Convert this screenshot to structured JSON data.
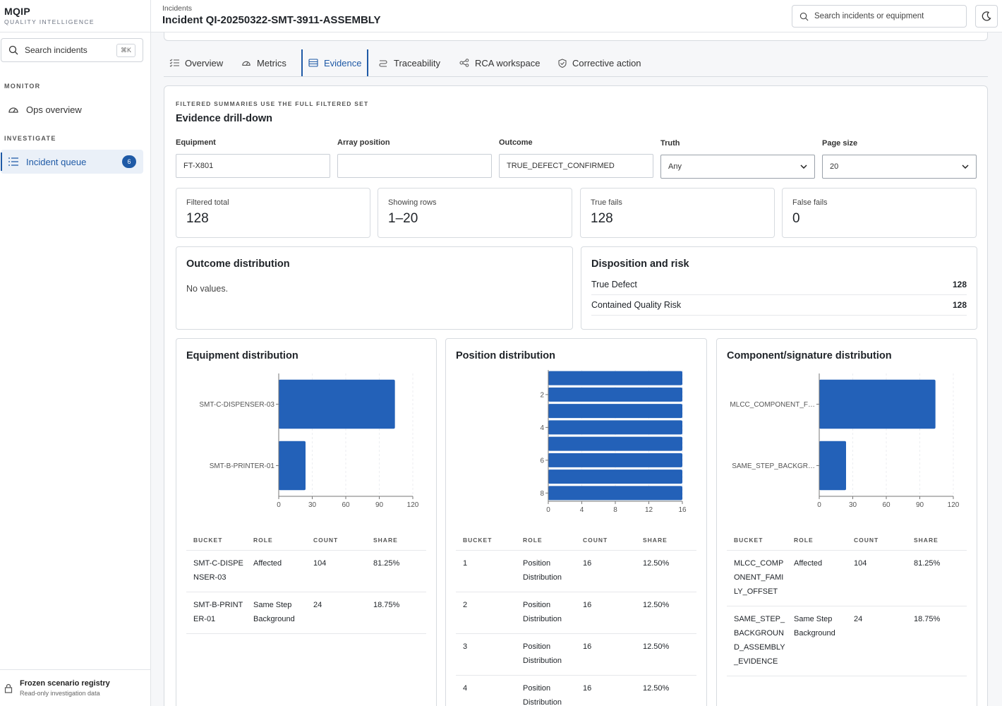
{
  "brand": {
    "name": "MQIP",
    "subtitle": "QUALITY INTELLIGENCE"
  },
  "sidebar": {
    "search_placeholder": "Search incidents",
    "search_shortcut": "⌘K",
    "sections": [
      {
        "label": "MONITOR",
        "items": [
          {
            "label": "Ops overview",
            "icon": "gauge-icon"
          }
        ]
      },
      {
        "label": "INVESTIGATE",
        "items": [
          {
            "label": "Incident queue",
            "icon": "list-icon",
            "badge": "6",
            "active": true
          }
        ]
      }
    ],
    "footer": {
      "title": "Frozen scenario registry",
      "subtitle": "Read-only investigation data"
    }
  },
  "header": {
    "breadcrumb": "Incidents",
    "title": "Incident QI-20250322-SMT-3911-ASSEMBLY",
    "search_placeholder": "Search incidents or equipment"
  },
  "tabs": [
    {
      "label": "Overview"
    },
    {
      "label": "Metrics"
    },
    {
      "label": "Evidence",
      "active": true
    },
    {
      "label": "Traceability"
    },
    {
      "label": "RCA workspace"
    },
    {
      "label": "Corrective action"
    }
  ],
  "evidence": {
    "eyebrow": "FILTERED SUMMARIES USE THE FULL FILTERED SET",
    "title": "Evidence drill-down",
    "filters": {
      "equipment": {
        "label": "Equipment",
        "value": "FT-X801"
      },
      "array_position": {
        "label": "Array position",
        "value": ""
      },
      "outcome": {
        "label": "Outcome",
        "value": "TRUE_DEFECT_CONFIRMED"
      },
      "truth": {
        "label": "Truth",
        "value": "Any"
      },
      "page_size": {
        "label": "Page size",
        "value": "20"
      }
    },
    "stats": [
      {
        "label": "Filtered total",
        "value": "128"
      },
      {
        "label": "Showing rows",
        "value": "1–20"
      },
      {
        "label": "True fails",
        "value": "128"
      },
      {
        "label": "False fails",
        "value": "0"
      }
    ],
    "outcome_distribution": {
      "title": "Outcome distribution",
      "empty": "No values."
    },
    "disposition": {
      "title": "Disposition and risk",
      "rows": [
        {
          "label": "True Defect",
          "value": "128"
        },
        {
          "label": "Contained Quality Risk",
          "value": "128"
        }
      ]
    },
    "table_headers": {
      "bucket": "BUCKET",
      "role": "ROLE",
      "count": "COUNT",
      "share": "SHARE"
    },
    "equipment_panel": {
      "title": "Equipment distribution",
      "rows": [
        {
          "bucket": "SMT-C-DISPENSER-03",
          "role": "Affected",
          "count": "104",
          "share": "81.25%"
        },
        {
          "bucket": "SMT-B-PRINTER-01",
          "role": "Same Step Background",
          "count": "24",
          "share": "18.75%"
        }
      ]
    },
    "position_panel": {
      "title": "Position distribution",
      "rows": [
        {
          "bucket": "1",
          "role": "Position Distribution",
          "count": "16",
          "share": "12.50%"
        },
        {
          "bucket": "2",
          "role": "Position Distribution",
          "count": "16",
          "share": "12.50%"
        },
        {
          "bucket": "3",
          "role": "Position Distribution",
          "count": "16",
          "share": "12.50%"
        },
        {
          "bucket": "4",
          "role": "Position Distribution",
          "count": "16",
          "share": "12.50%"
        }
      ]
    },
    "component_panel": {
      "title": "Component/signature distribution",
      "rows": [
        {
          "bucket": "MLCC_COMPONENT_FAMILY_OFFSET",
          "role": "Affected",
          "count": "104",
          "share": "81.25%"
        },
        {
          "bucket": "SAME_STEP_BACKGROUND_ASSEMBLY_EVIDENCE",
          "role": "Same Step Background",
          "count": "24",
          "share": "18.75%"
        }
      ]
    }
  },
  "chart_data": [
    {
      "type": "bar",
      "orientation": "horizontal",
      "categories": [
        "SMT-C-DISPENSER-03",
        "SMT-B-PRINTER-01"
      ],
      "tick_labels": [
        "SMT-C-DISPENSER-03",
        "SMT-B-PRINTER-01"
      ],
      "values": [
        104,
        24
      ],
      "xlim": [
        0,
        120
      ],
      "xticks": [
        0,
        30,
        60,
        90,
        120
      ],
      "color": "#2361b8"
    },
    {
      "type": "bar",
      "orientation": "horizontal",
      "categories": [
        1,
        2,
        3,
        4,
        5,
        6,
        7,
        8
      ],
      "tick_labels": [
        "",
        "2",
        "",
        "4",
        "",
        "6",
        "",
        "8"
      ],
      "values": [
        16,
        16,
        16,
        16,
        16,
        16,
        16,
        16
      ],
      "xlim": [
        0,
        16
      ],
      "xticks": [
        0,
        4,
        8,
        12,
        16
      ],
      "color": "#2361b8"
    },
    {
      "type": "bar",
      "orientation": "horizontal",
      "categories": [
        "MLCC_COMPONENT_FAMILY_OFFSET",
        "SAME_STEP_BACKGROUND_ASSEMBLY_EVIDENCE"
      ],
      "tick_labels": [
        "MLCC_COMPONENT_F…",
        "SAME_STEP_BACKGR…"
      ],
      "values": [
        104,
        24
      ],
      "xlim": [
        0,
        120
      ],
      "xticks": [
        0,
        30,
        60,
        90,
        120
      ],
      "color": "#2361b8"
    }
  ]
}
